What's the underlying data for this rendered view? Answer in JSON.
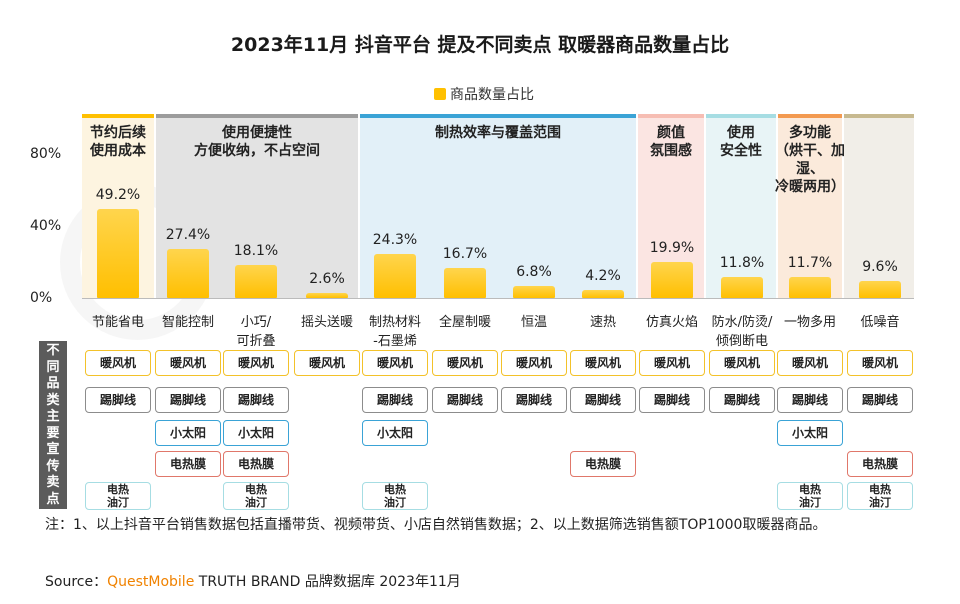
{
  "title": "2023年11月 抖音平台 提及不同卖点 取暖器商品数量占比",
  "legend": "商品数量占比",
  "yticks": [
    "80%",
    "40%",
    "0%"
  ],
  "groups": [
    {
      "label": "节约后续\n使用成本",
      "bg": "#fdf4e0",
      "top": "#ffc000"
    },
    {
      "label": "使用便捷性\n方便收纳，不占空间",
      "bg": "#e3e3e3",
      "top": "#9c9c9c"
    },
    {
      "label": "制热效率与覆盖范围",
      "bg": "#e2f0f8",
      "top": "#3aa3d6"
    },
    {
      "label": "颜值\n氛围感",
      "bg": "#fbe5e2",
      "top": "#f6bdb3"
    },
    {
      "label": "使用\n安全性",
      "bg": "#e8f4f6",
      "top": "#a6dde3"
    },
    {
      "label": "多功能\n（烘干、加湿、\n冷暖两用）",
      "bg": "#fbeadb",
      "top": "#f39a50"
    },
    {
      "label": "",
      "bg": "#f1eee8",
      "top": "#c7b98f"
    }
  ],
  "chart_data": {
    "type": "bar",
    "title": "2023年11月 抖音平台 提及不同卖点 取暖器商品数量占比",
    "categories": [
      "节能省电",
      "智能控制",
      "小巧/\n可折叠",
      "摇头送暖",
      "制热材料\n-石墨烯",
      "全屋制暖",
      "恒温",
      "速热",
      "仿真火焰",
      "防水/防烫/\n倾倒断电",
      "一物多用",
      "低噪音"
    ],
    "series": [
      {
        "name": "商品数量占比",
        "values": [
          49.2,
          27.4,
          18.1,
          2.6,
          24.3,
          16.7,
          6.8,
          4.2,
          19.9,
          11.8,
          11.7,
          9.6
        ]
      }
    ],
    "value_labels": [
      "49.2%",
      "27.4%",
      "18.1%",
      "2.6%",
      "24.3%",
      "16.7%",
      "6.8%",
      "4.2%",
      "19.9%",
      "11.8%",
      "11.7%",
      "9.6%"
    ],
    "ylim": [
      0,
      80
    ],
    "color": "#ffc000",
    "legend": "top"
  },
  "sidebar_label": "不同品类主要宣传卖点",
  "product_types": [
    {
      "label": "暖风机",
      "color": "#f3c22a"
    },
    {
      "label": "踢脚线",
      "color": "#8c8c8c"
    },
    {
      "label": "小太阳",
      "color": "#3aa3d6"
    },
    {
      "label": "电热膜",
      "color": "#e0776a"
    },
    {
      "label": "电热\n油汀",
      "color": "#a6dde3"
    }
  ],
  "selling_point_matrix": [
    [
      1,
      1,
      0,
      0,
      1
    ],
    [
      1,
      1,
      1,
      1,
      0
    ],
    [
      1,
      1,
      1,
      1,
      1
    ],
    [
      1,
      0,
      0,
      0,
      0
    ],
    [
      1,
      1,
      1,
      0,
      1
    ],
    [
      1,
      1,
      0,
      0,
      0
    ],
    [
      1,
      1,
      0,
      0,
      0
    ],
    [
      1,
      1,
      0,
      1,
      0
    ],
    [
      1,
      1,
      0,
      0,
      0
    ],
    [
      1,
      1,
      0,
      0,
      0
    ],
    [
      1,
      1,
      1,
      0,
      1
    ],
    [
      1,
      1,
      0,
      1,
      1
    ]
  ],
  "note": "注：1、以上抖音平台销售数据包括直播带货、视频带货、小店自然销售数据；2、以上数据筛选销售额TOP1000取暖器商品。",
  "source_prefix": "Source：",
  "source_brand": "QuestMobile",
  "source_rest": " TRUTH BRAND 品牌数据库 2023年11月"
}
